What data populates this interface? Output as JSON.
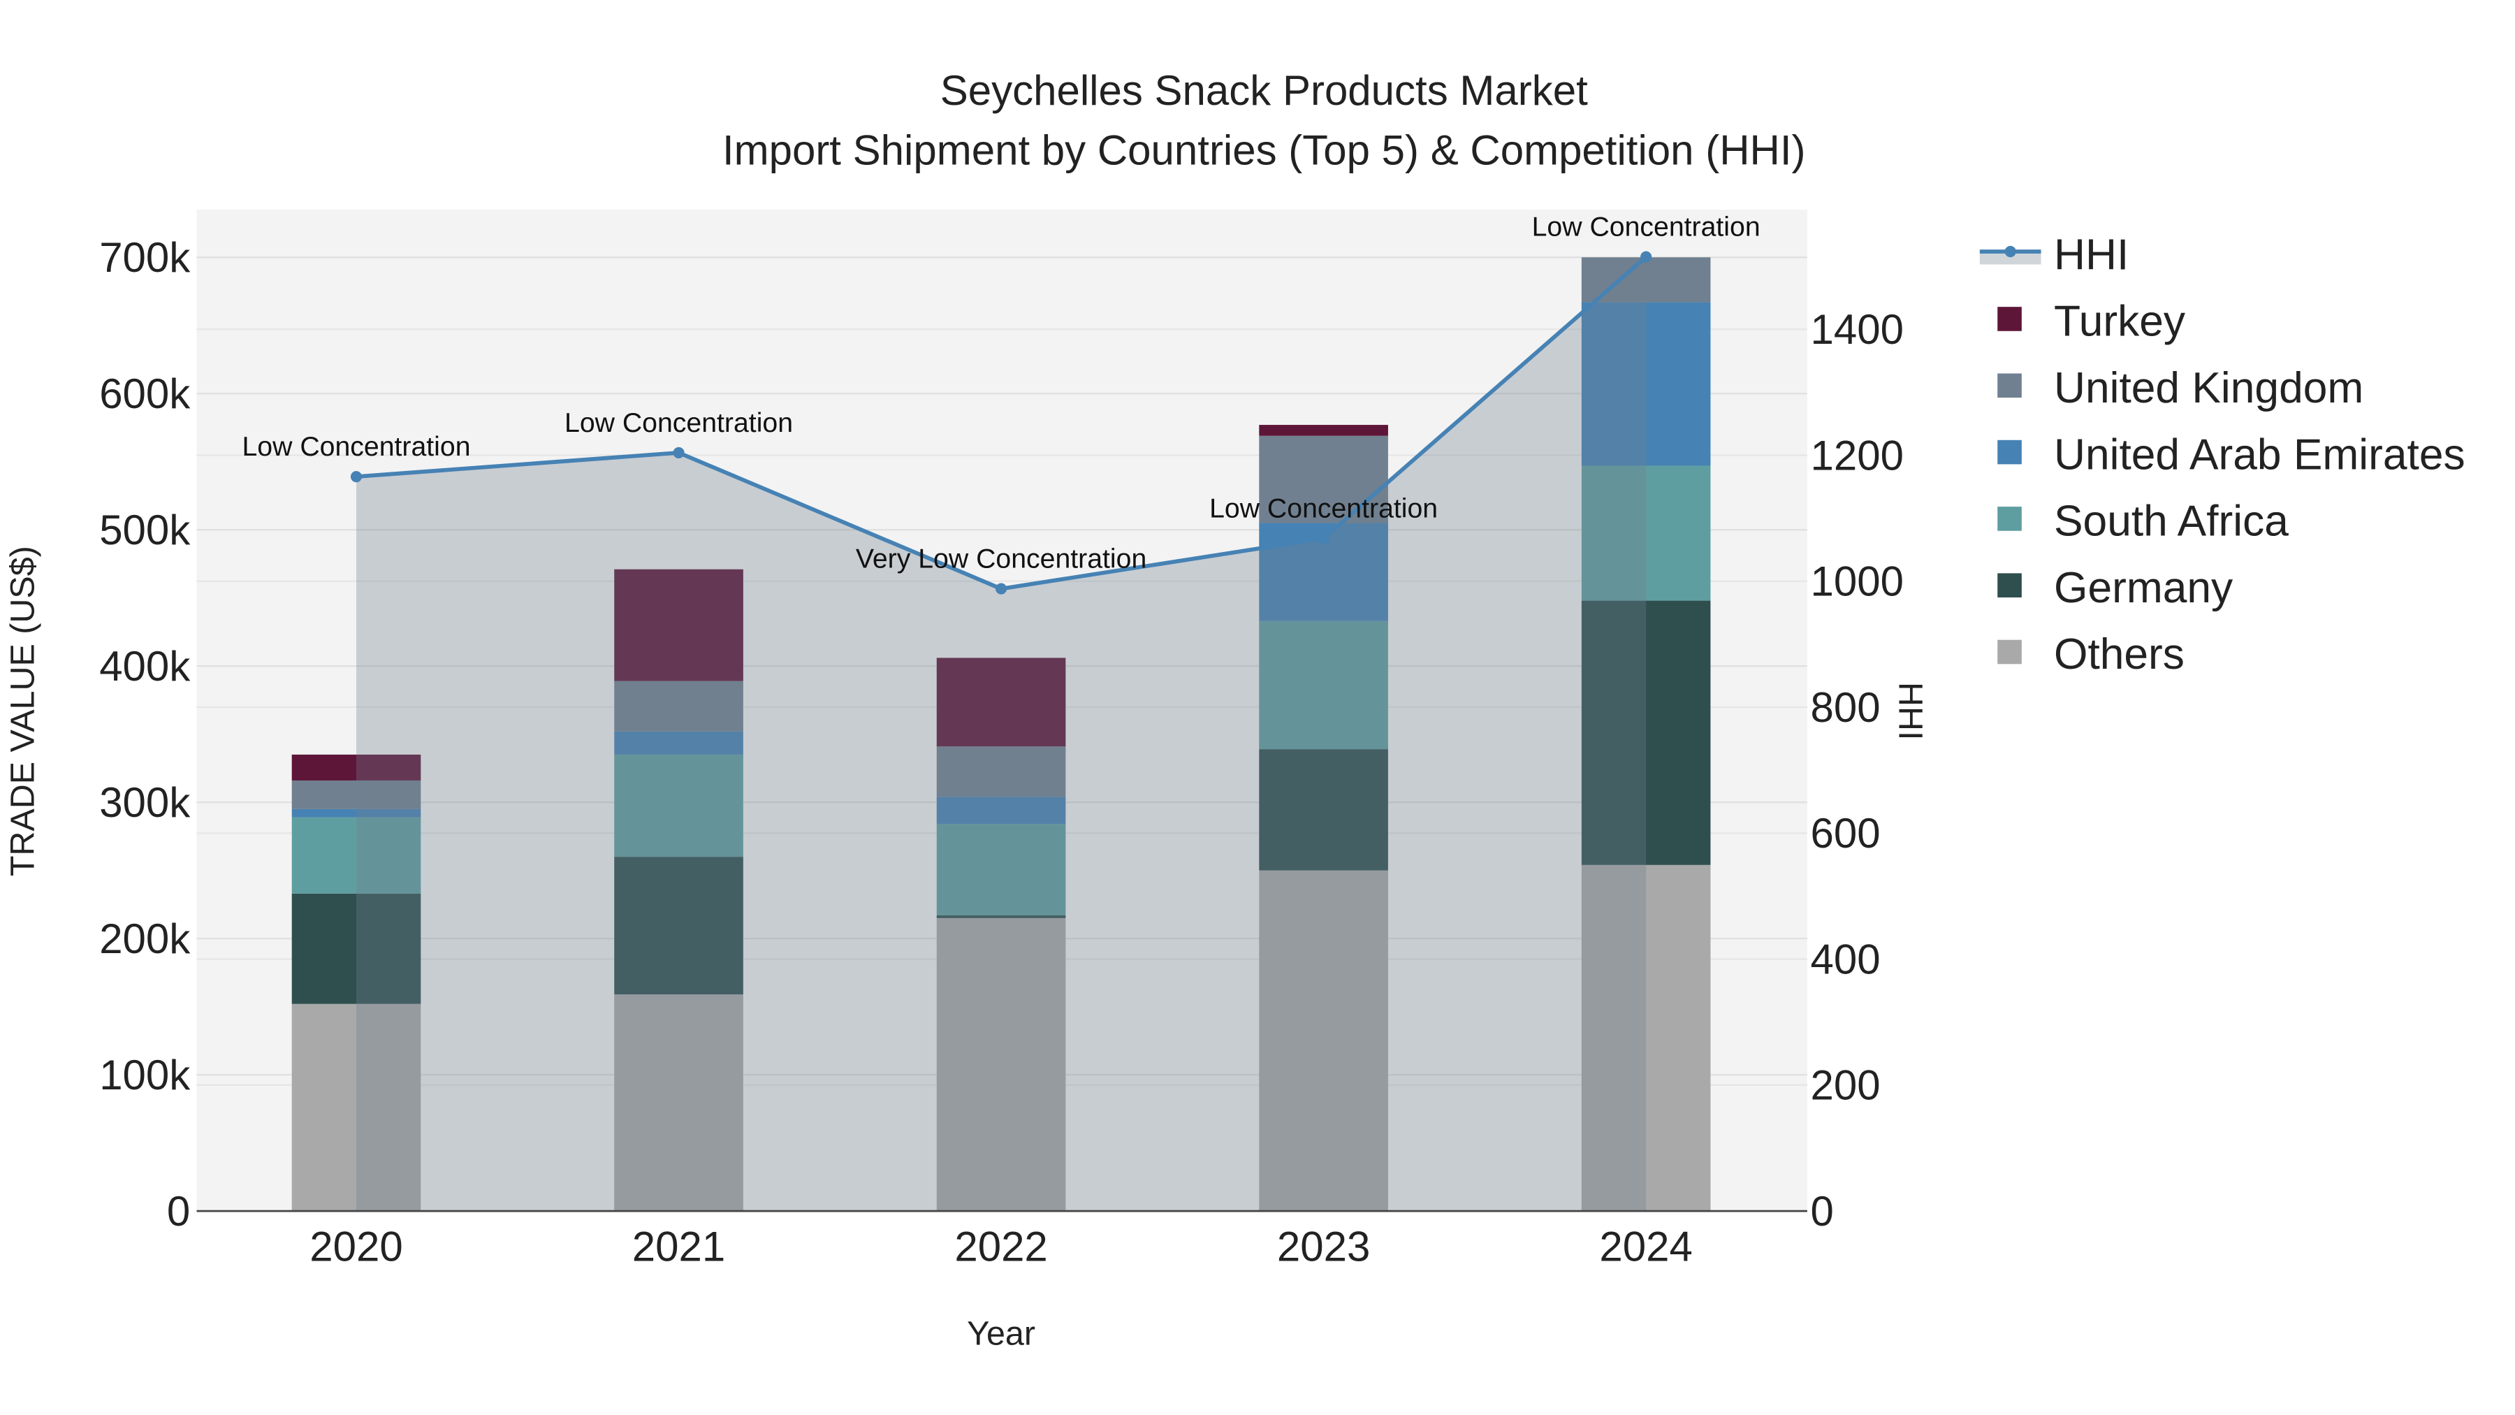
{
  "chart_data": {
    "type": "bar",
    "barmode": "stack",
    "title": "Seychelles Snack Products Market",
    "subtitle": "Import Shipment by Countries (Top 5) & Competition (HHI)",
    "xlabel": "Year",
    "ylabel": "TRADE VALUE (US$)",
    "y2label": "HHI",
    "categories": [
      "2020",
      "2021",
      "2022",
      "2023",
      "2024"
    ],
    "ylim": [
      0,
      735000
    ],
    "y_ticks": [
      0,
      100000,
      200000,
      300000,
      400000,
      500000,
      600000,
      700000
    ],
    "y_tick_labels": [
      "0",
      "100k",
      "200k",
      "300k",
      "400k",
      "500k",
      "600k",
      "700k"
    ],
    "y2lim": [
      0,
      1590
    ],
    "y2_ticks": [
      0,
      200,
      400,
      600,
      800,
      1000,
      1200,
      1400
    ],
    "y2_tick_labels": [
      "0",
      "200",
      "400",
      "600",
      "800",
      "1000",
      "1200",
      "1400"
    ],
    "series": [
      {
        "name": "Others",
        "color": "#a9a9a9",
        "values": [
          152000,
          159000,
          215000,
          250000,
          254000
        ]
      },
      {
        "name": "Germany",
        "color": "#2f4f4f",
        "values": [
          81000,
          101000,
          2000,
          89000,
          194000
        ]
      },
      {
        "name": "South Africa",
        "color": "#5f9ea0",
        "values": [
          56000,
          75000,
          67000,
          94000,
          99000
        ]
      },
      {
        "name": "United Arab Emirates",
        "color": "#4682b4",
        "values": [
          6000,
          17000,
          20000,
          72000,
          120000
        ]
      },
      {
        "name": "United Kingdom",
        "color": "#708090",
        "values": [
          21000,
          37000,
          37000,
          64000,
          33000
        ]
      },
      {
        "name": "Turkey",
        "color": "#5e1638",
        "values": [
          19000,
          82000,
          65000,
          8000,
          0
        ]
      }
    ],
    "hhi": {
      "name": "HHI",
      "color": "#4682b4",
      "values": [
        1166,
        1204,
        988,
        1068,
        1515
      ],
      "annotations": [
        "Low Concentration",
        "Low Concentration",
        "Very Low Concentration",
        "Low Concentration",
        "Low Concentration"
      ]
    },
    "legend_order": [
      "HHI",
      "Turkey",
      "United Kingdom",
      "United Arab Emirates",
      "South Africa",
      "Germany",
      "Others"
    ],
    "legend_placement": "right",
    "grid": true
  }
}
